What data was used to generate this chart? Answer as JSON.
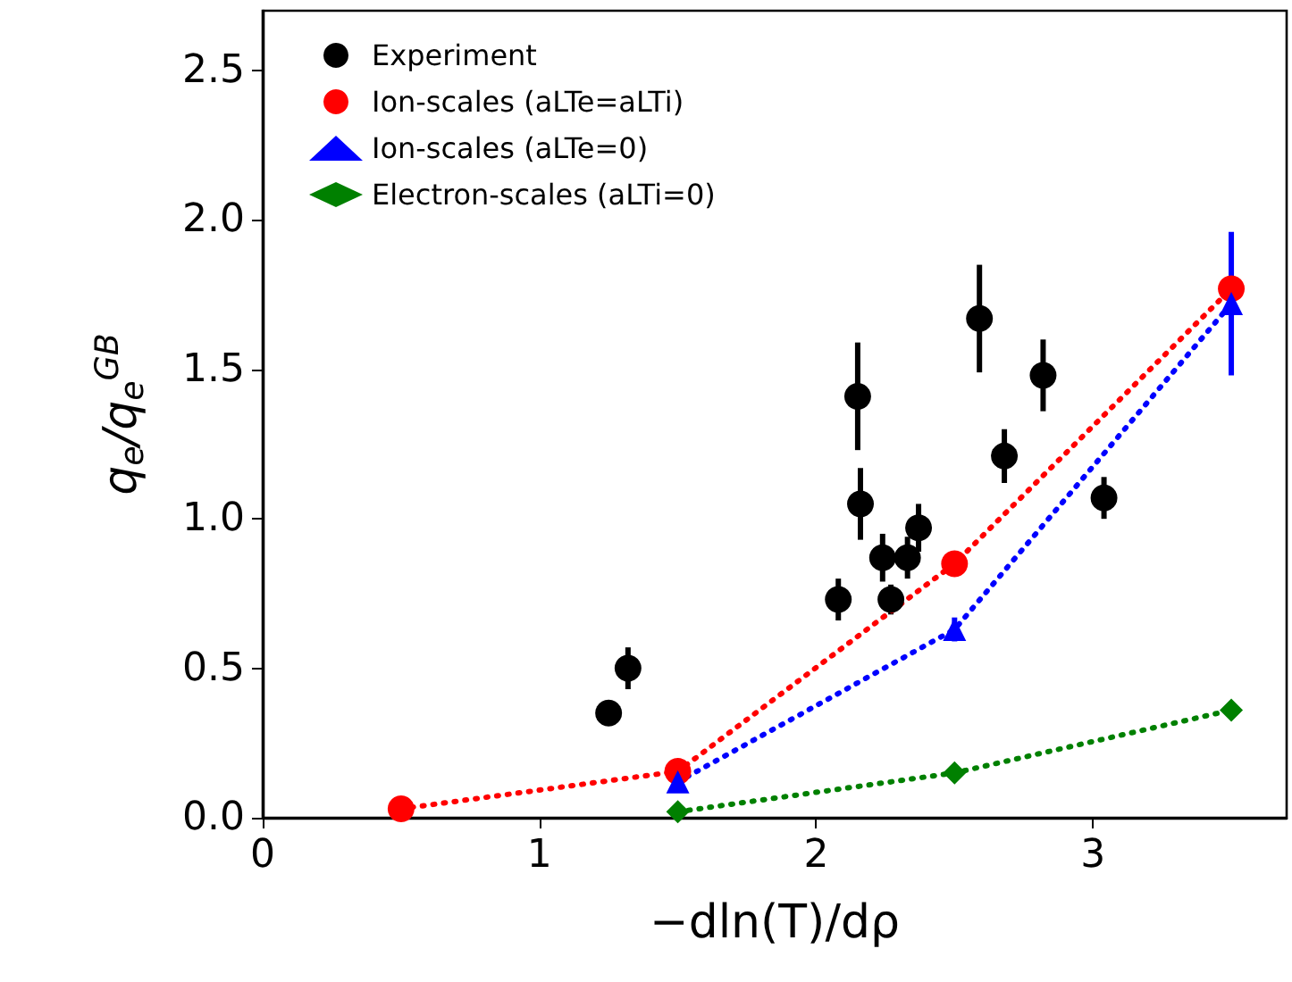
{
  "chart_data": {
    "type": "line",
    "xlabel": "−dln(T)/dρ",
    "ylabel": "q$_{e}$/q$_{e}$$^{GB}$",
    "xlim": [
      0,
      3.7
    ],
    "xticks": [
      0,
      1,
      2,
      3
    ],
    "ylim": [
      0,
      2.7
    ],
    "yticks": [
      {
        "value": 0,
        "label": "0.0"
      },
      {
        "value": 0.5,
        "label": "0.5"
      },
      {
        "value": 1,
        "label": "1.0"
      },
      {
        "value": 1.5,
        "label": "1.5"
      },
      {
        "value": 2,
        "label": "2.0"
      },
      {
        "value": 2.5,
        "label": "2.5"
      }
    ],
    "grid": false,
    "legend": "top left",
    "line_style": "dotted",
    "series": [
      {
        "name": "Experiment",
        "type": "scatter",
        "marker": "circle",
        "color": "#000000",
        "x": [
          1.25,
          1.32,
          2.08,
          2.15,
          2.16,
          2.24,
          2.27,
          2.33,
          2.37,
          2.59,
          2.68,
          2.82,
          3.04
        ],
        "values": [
          0.35,
          0.5,
          0.73,
          1.41,
          1.05,
          0.87,
          0.73,
          0.87,
          0.97,
          1.67,
          1.21,
          1.48,
          1.07
        ],
        "errors": [
          0.02,
          0.07,
          0.07,
          0.18,
          0.12,
          0.08,
          0.05,
          0.07,
          0.08,
          0.18,
          0.09,
          0.12,
          0.07
        ]
      },
      {
        "name": "Ion-scales (aLTe=aLTi)",
        "type": "line",
        "marker": "circle",
        "color": "#ff0000",
        "x": [
          0.5,
          1.5,
          2.5,
          3.5
        ],
        "values": [
          0.03,
          0.155,
          0.85,
          1.77
        ]
      },
      {
        "name": "Ion-scales (aLTe=0)",
        "type": "line",
        "marker": "triangle",
        "color": "#0000ff",
        "x": [
          1.5,
          2.5,
          3.5
        ],
        "values": [
          0.12,
          0.63,
          1.72
        ],
        "errors": [
          null,
          0.04,
          0.24
        ]
      },
      {
        "name": "Electron-scales (aLTi=0)",
        "type": "line",
        "marker": "diamond",
        "color": "#008000",
        "x": [
          1.5,
          2.5,
          3.5
        ],
        "values": [
          0.02,
          0.15,
          0.36
        ]
      }
    ]
  }
}
